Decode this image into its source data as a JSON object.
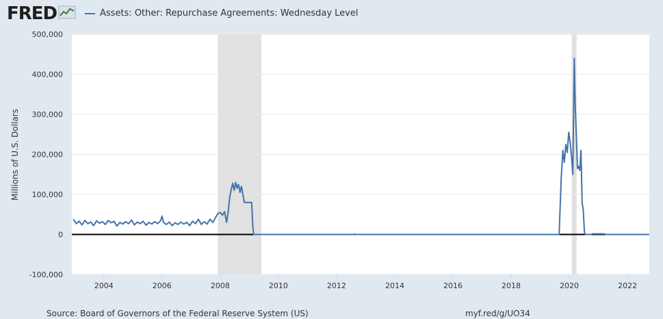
{
  "header": {
    "logo_text": "FRED",
    "logo_icon": "chart-line-icon"
  },
  "legend": {
    "series_name": "Assets: Other: Repurchase Agreements: Wednesday Level"
  },
  "footer": {
    "source": "Source: Board of Governors of the Federal Reserve System (US)",
    "link": "myf.red/g/UO34"
  },
  "chart_data": {
    "type": "line",
    "title": "",
    "xlabel": "",
    "ylabel": "Millions of U.S. Dollars",
    "xlim": [
      2002.9,
      2022.75
    ],
    "ylim": [
      -100000,
      500000
    ],
    "x_ticks": [
      "2004",
      "2006",
      "2008",
      "2010",
      "2012",
      "2014",
      "2016",
      "2018",
      "2020",
      "2022"
    ],
    "y_ticks": [
      "-100,000",
      "0",
      "100,000",
      "200,000",
      "300,000",
      "400,000",
      "500,000"
    ],
    "grid": true,
    "legend_position": "top",
    "colors": {
      "series": "#4572a7",
      "recession": "#e1e1e1",
      "zero_line": "#000000",
      "grid": "#e6e6e6"
    },
    "recessions": [
      {
        "start": "2007-12",
        "end": "2009-06"
      },
      {
        "start": "2020-02",
        "end": "2020-04"
      }
    ],
    "series": [
      {
        "name": "Assets: Other: Repurchase Agreements: Wednesday Level",
        "points": [
          [
            2002.95,
            38000
          ],
          [
            2003.05,
            27000
          ],
          [
            2003.15,
            33000
          ],
          [
            2003.25,
            24000
          ],
          [
            2003.35,
            35000
          ],
          [
            2003.45,
            27000
          ],
          [
            2003.55,
            31000
          ],
          [
            2003.65,
            22000
          ],
          [
            2003.75,
            34000
          ],
          [
            2003.85,
            28000
          ],
          [
            2003.95,
            32000
          ],
          [
            2004.05,
            25000
          ],
          [
            2004.15,
            35000
          ],
          [
            2004.25,
            29000
          ],
          [
            2004.35,
            33000
          ],
          [
            2004.45,
            21000
          ],
          [
            2004.55,
            30000
          ],
          [
            2004.65,
            26000
          ],
          [
            2004.75,
            32000
          ],
          [
            2004.85,
            27000
          ],
          [
            2004.95,
            36000
          ],
          [
            2005.05,
            24000
          ],
          [
            2005.15,
            31000
          ],
          [
            2005.25,
            27000
          ],
          [
            2005.35,
            33000
          ],
          [
            2005.45,
            23000
          ],
          [
            2005.55,
            30000
          ],
          [
            2005.65,
            26000
          ],
          [
            2005.75,
            32000
          ],
          [
            2005.85,
            27000
          ],
          [
            2005.95,
            34000
          ],
          [
            2006.0,
            46000
          ],
          [
            2006.05,
            30000
          ],
          [
            2006.15,
            25000
          ],
          [
            2006.25,
            31000
          ],
          [
            2006.35,
            22000
          ],
          [
            2006.45,
            29000
          ],
          [
            2006.55,
            25000
          ],
          [
            2006.65,
            31000
          ],
          [
            2006.75,
            26000
          ],
          [
            2006.85,
            30000
          ],
          [
            2006.95,
            22000
          ],
          [
            2007.05,
            33000
          ],
          [
            2007.15,
            27000
          ],
          [
            2007.25,
            38000
          ],
          [
            2007.35,
            25000
          ],
          [
            2007.45,
            32000
          ],
          [
            2007.55,
            26000
          ],
          [
            2007.65,
            38000
          ],
          [
            2007.75,
            30000
          ],
          [
            2007.85,
            44000
          ],
          [
            2007.92,
            52000
          ],
          [
            2008.0,
            55000
          ],
          [
            2008.08,
            48000
          ],
          [
            2008.15,
            57000
          ],
          [
            2008.22,
            30000
          ],
          [
            2008.28,
            60000
          ],
          [
            2008.33,
            95000
          ],
          [
            2008.38,
            112000
          ],
          [
            2008.43,
            128000
          ],
          [
            2008.48,
            110000
          ],
          [
            2008.53,
            130000
          ],
          [
            2008.58,
            115000
          ],
          [
            2008.63,
            125000
          ],
          [
            2008.68,
            105000
          ],
          [
            2008.73,
            120000
          ],
          [
            2008.78,
            100000
          ],
          [
            2008.83,
            80000
          ],
          [
            2008.9,
            80000
          ],
          [
            2009.0,
            80000
          ],
          [
            2009.08,
            80000
          ],
          [
            2009.12,
            20000
          ],
          [
            2009.15,
            0
          ],
          [
            2012.6,
            0
          ],
          [
            2012.62,
            1000
          ],
          [
            2012.64,
            0
          ],
          [
            2019.65,
            0
          ],
          [
            2019.72,
            140000
          ],
          [
            2019.78,
            210000
          ],
          [
            2019.83,
            180000
          ],
          [
            2019.88,
            225000
          ],
          [
            2019.93,
            205000
          ],
          [
            2019.98,
            255000
          ],
          [
            2020.03,
            230000
          ],
          [
            2020.08,
            190000
          ],
          [
            2020.12,
            150000
          ],
          [
            2020.17,
            440000
          ],
          [
            2020.2,
            330000
          ],
          [
            2020.24,
            250000
          ],
          [
            2020.28,
            165000
          ],
          [
            2020.32,
            170000
          ],
          [
            2020.36,
            160000
          ],
          [
            2020.4,
            210000
          ],
          [
            2020.44,
            80000
          ],
          [
            2020.48,
            60000
          ],
          [
            2020.52,
            5000
          ],
          [
            2020.55,
            0
          ],
          [
            2020.75,
            0
          ],
          [
            2020.8,
            1500
          ],
          [
            2021.2,
            1500
          ],
          [
            2021.25,
            0
          ],
          [
            2022.75,
            0
          ]
        ]
      }
    ]
  }
}
